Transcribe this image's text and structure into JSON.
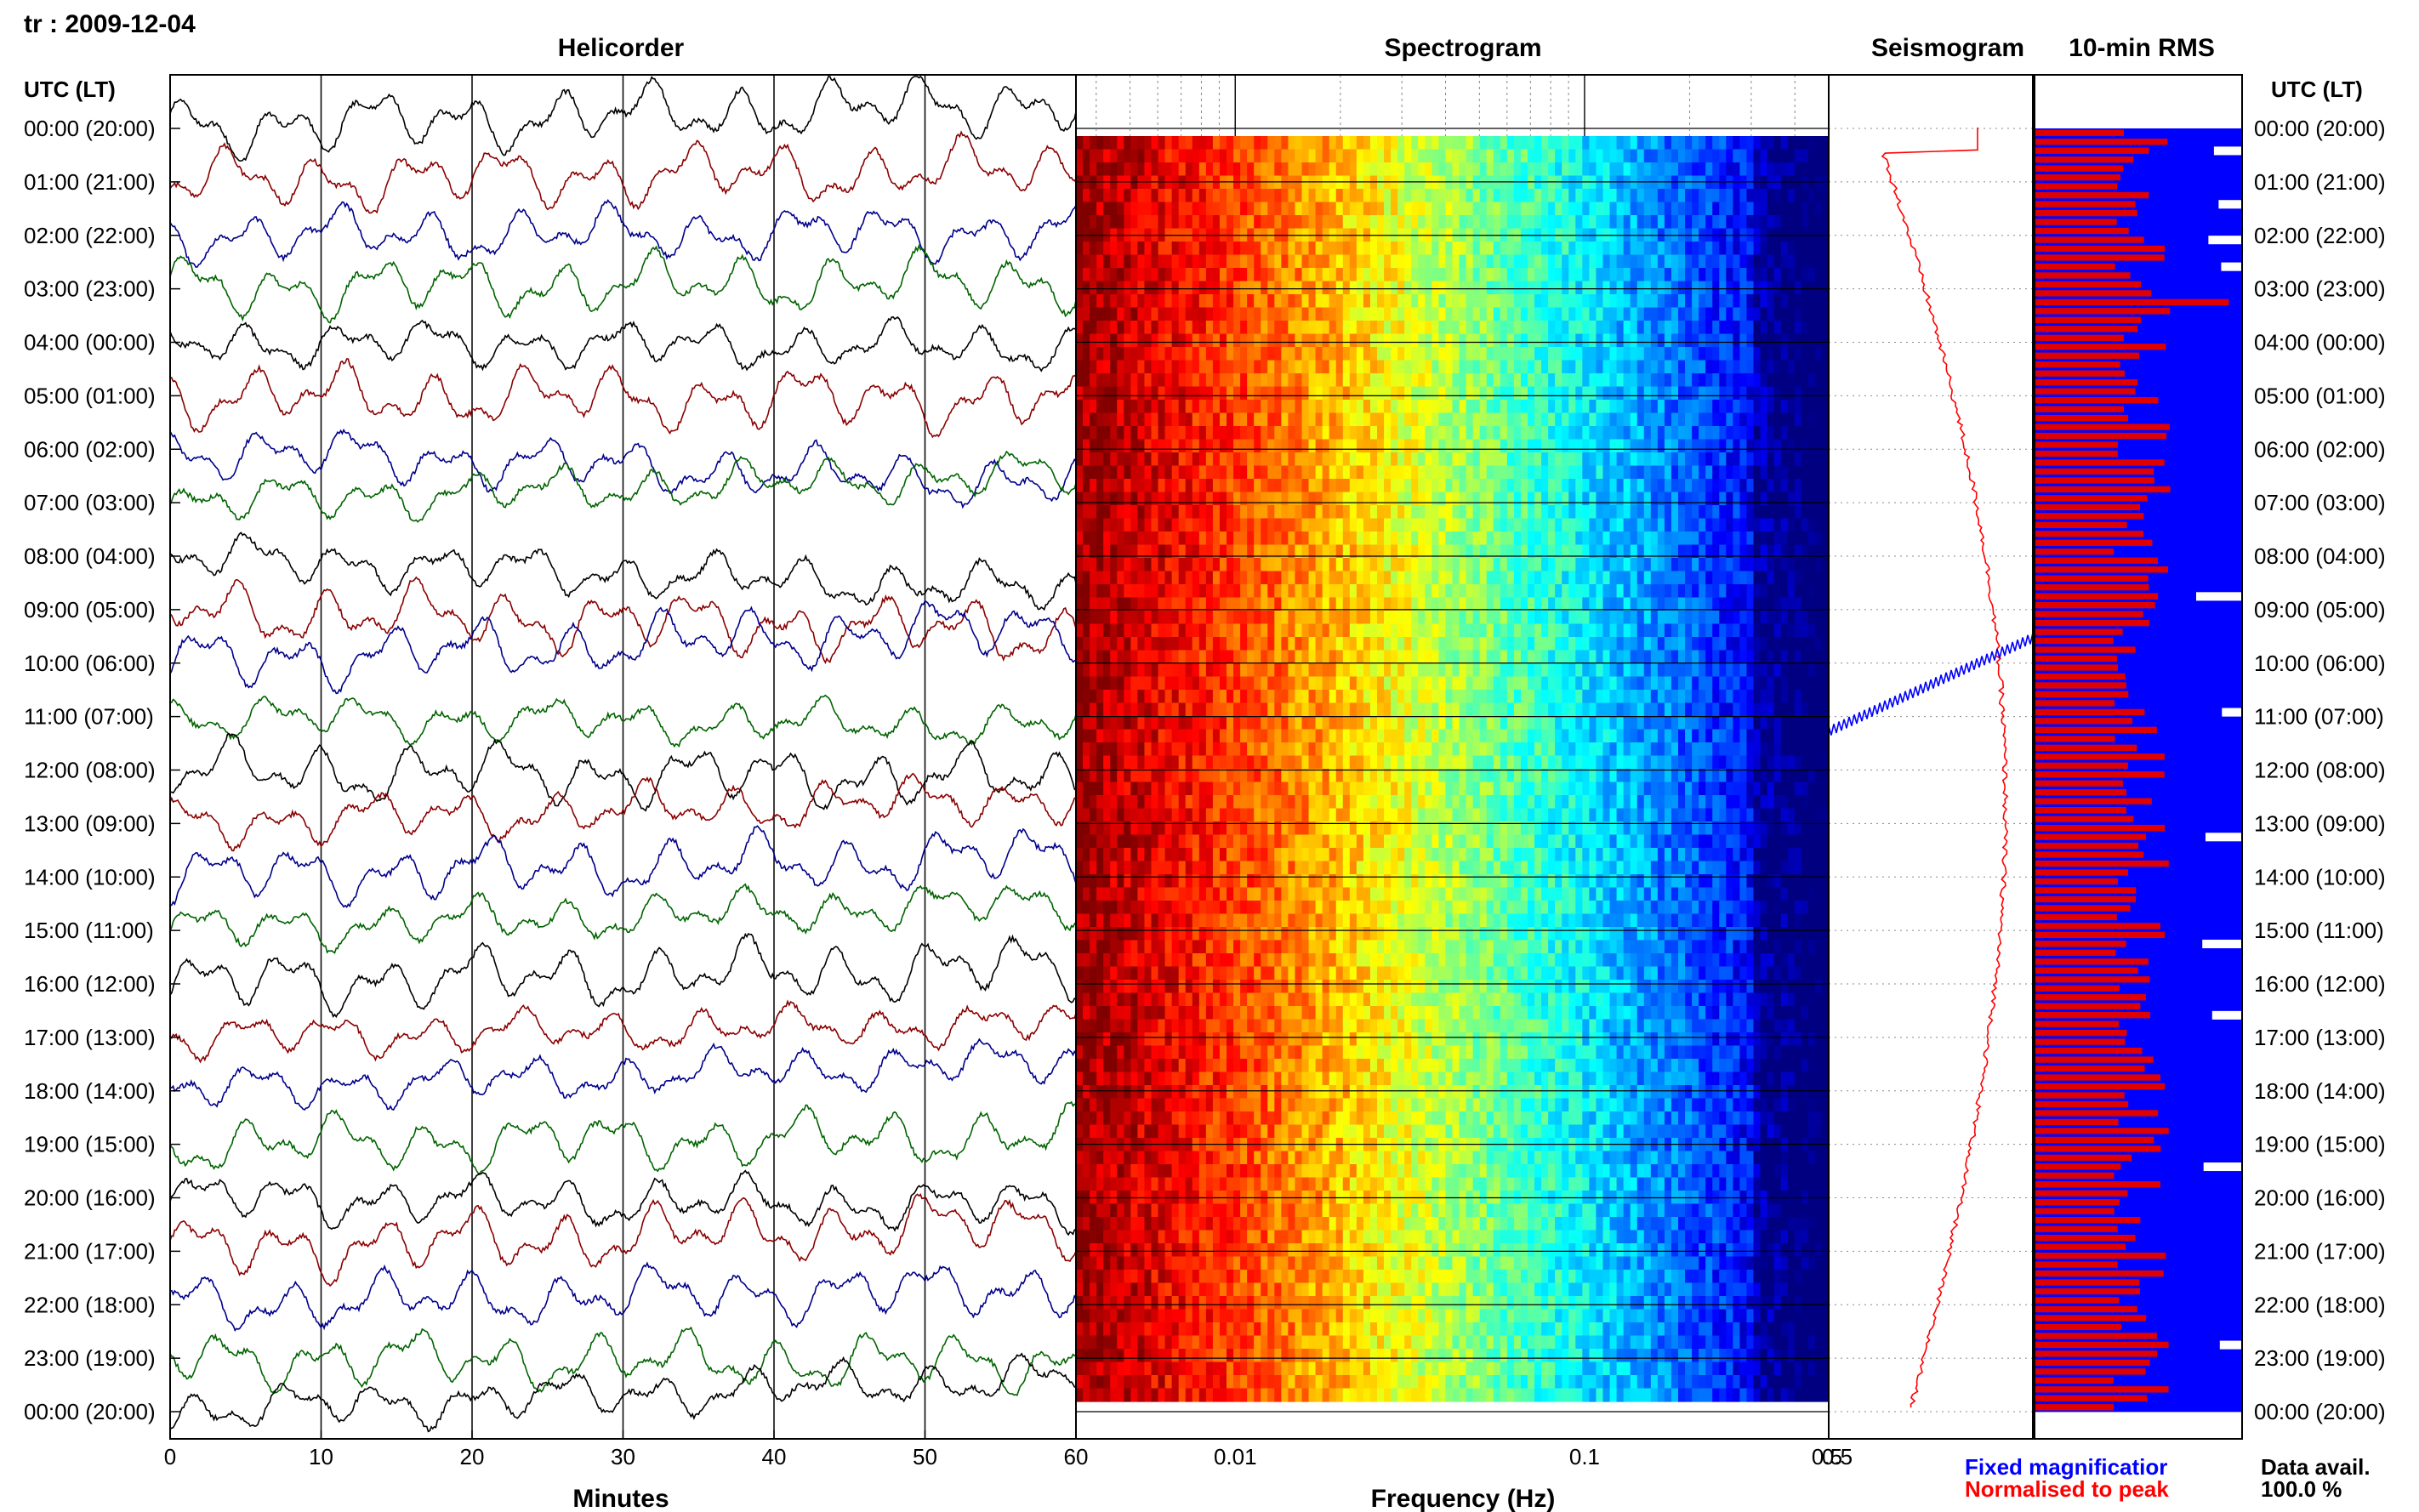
{
  "header": {
    "station_date": "tr : 2009-12-04"
  },
  "panels": {
    "helicorder": "Helicorder",
    "spectrogram": "Spectrogram",
    "seismogram": "Seismogram",
    "rms": "10-min RMS"
  },
  "axis_labels": {
    "time_left": "UTC (LT)",
    "time_right": "UTC (LT)",
    "minutes": "Minutes",
    "frequency": "Frequency (Hz)"
  },
  "legend": {
    "fixed": "Fixed magnificatior",
    "normalised": "Normalised to peak",
    "data_avail_label": "Data avail.",
    "data_avail_value": "100.0 %"
  },
  "colors": {
    "trace_cycle": [
      "#000000",
      "#8b0000",
      "#00008b",
      "#006400"
    ],
    "rms_red": "#e00000",
    "rms_blue": "#0000ff",
    "legend_blue": "#0000ff",
    "legend_red": "#ff0000",
    "grid_line": "#000000"
  },
  "chart_data": [
    {
      "type": "line",
      "title": "Helicorder",
      "xlabel": "Minutes",
      "ylabel": "UTC (LT)",
      "xlim": [
        0,
        60
      ],
      "x_ticks": [
        "0",
        "10",
        "20",
        "30",
        "40",
        "50",
        "60"
      ],
      "y_ticks": [
        "00:00 (20:00)",
        "01:00 (21:00)",
        "02:00 (22:00)",
        "03:00 (23:00)",
        "04:00 (00:00)",
        "05:00 (01:00)",
        "06:00 (02:00)",
        "07:00 (03:00)",
        "08:00 (04:00)",
        "09:00 (05:00)",
        "10:00 (06:00)",
        "11:00 (07:00)",
        "12:00 (08:00)",
        "13:00 (09:00)",
        "14:00 (10:00)",
        "15:00 (11:00)",
        "16:00 (12:00)",
        "17:00 (13:00)",
        "18:00 (14:00)",
        "19:00 (15:00)",
        "20:00 (16:00)",
        "21:00 (17:00)",
        "22:00 (18:00)",
        "23:00 (19:00)",
        "00:00 (20:00)"
      ],
      "y_ticks_right": [
        "00:00 (20:00)",
        "01:00 (21:00)",
        "02:00 (22:00)",
        "03:00 (23:00)",
        "04:00 (00:00)",
        "05:00 (01:00)",
        "06:00 (02:00)",
        "07:00 (03:00)",
        "08:00 (04:00)",
        "09:00 (05:00)",
        "10:00 (06:00)",
        "11:00 (07:00)",
        "12:00 (08:00)",
        "13:00 (09:00)",
        "14:00 (10:00)",
        "15:00 (11:00)",
        "16:00 (12:00)",
        "17:00 (13:00)",
        "18:00 (14:00)",
        "19:00 (15:00)",
        "20:00 (16:00)",
        "21:00 (17:00)",
        "22:00 (18:00)",
        "23:00 (19:00)",
        "00:00 (20:00)"
      ],
      "trace_count": 25,
      "grid": true
    },
    {
      "type": "heatmap",
      "title": "Spectrogram",
      "xlabel": "Frequency (Hz)",
      "x_scale": "log",
      "xlim": [
        0.0035,
        0.5
      ],
      "x_ticks": [
        "0.01",
        "0.1",
        "0.5"
      ],
      "colormap": "jet",
      "rows": 24,
      "note_levels": "high power (red) below 0.02 Hz, falling to low power (blue) above 0.3 Hz"
    },
    {
      "type": "line",
      "title": "Seismogram",
      "x_ticks": [
        "0.5"
      ],
      "series": [
        {
          "name": "Normalised to peak"
        },
        {
          "name": "Fixed magnificatior"
        }
      ]
    },
    {
      "type": "bar",
      "title": "10-min RMS",
      "orientation": "horizontal",
      "rows": 144,
      "data_availability_percent": 100.0
    }
  ]
}
